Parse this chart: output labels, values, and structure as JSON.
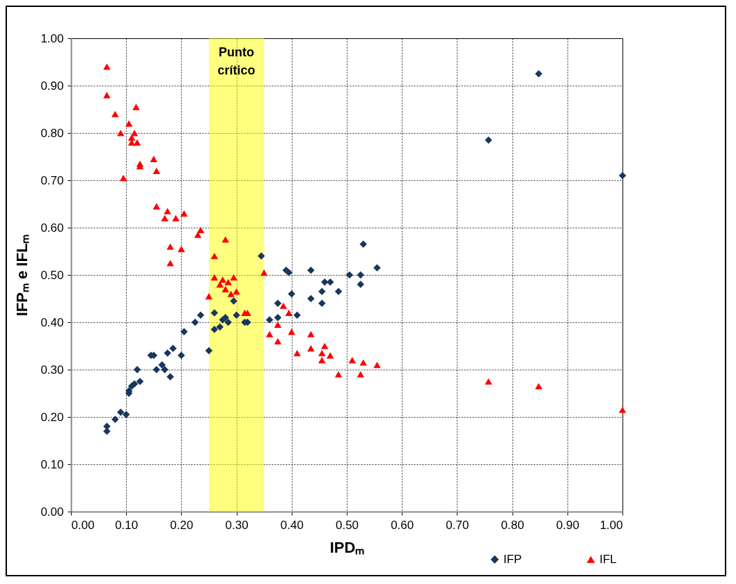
{
  "chart_data": {
    "type": "scatter",
    "xlabel": "IPDₘ",
    "ylabel": "IFPₘ e IFLₘ",
    "xlim": [
      0,
      1
    ],
    "ylim": [
      0,
      1
    ],
    "xticks": [
      {
        "value": 0,
        "label": "0.00"
      },
      {
        "value": 0.1,
        "label": "0.10"
      },
      {
        "value": 0.2,
        "label": "0.20"
      },
      {
        "value": 0.3,
        "label": "0.30"
      },
      {
        "value": 0.4,
        "label": "0.40"
      },
      {
        "value": 0.5,
        "label": "0.50"
      },
      {
        "value": 0.6,
        "label": "0.60"
      },
      {
        "value": 0.7,
        "label": "0.70"
      },
      {
        "value": 0.8,
        "label": "0.80"
      },
      {
        "value": 0.9,
        "label": "0.90"
      },
      {
        "value": 1,
        "label": "1.00"
      }
    ],
    "yticks": [
      {
        "value": 0,
        "label": "0.00"
      },
      {
        "value": 0.1,
        "label": "0.10"
      },
      {
        "value": 0.2,
        "label": "0.20"
      },
      {
        "value": 0.3,
        "label": "0.30"
      },
      {
        "value": 0.4,
        "label": "0.40"
      },
      {
        "value": 0.5,
        "label": "0.50"
      },
      {
        "value": 0.6,
        "label": "0.60"
      },
      {
        "value": 0.7,
        "label": "0.70"
      },
      {
        "value": 0.8,
        "label": "0.80"
      },
      {
        "value": 0.9,
        "label": "0.90"
      },
      {
        "value": 1,
        "label": "1.00"
      }
    ],
    "grid": true,
    "legend": "bottom right",
    "bands": [
      {
        "axis": "x",
        "from": 0.25,
        "to": 0.35,
        "label": "Punto crítico",
        "color": "#ffff00"
      }
    ],
    "series": [
      {
        "name": "IFP",
        "color": "#17375e",
        "marker": "diamond",
        "x": [
          0.065,
          0.065,
          0.08,
          0.09,
          0.1,
          0.105,
          0.105,
          0.11,
          0.115,
          0.12,
          0.125,
          0.145,
          0.15,
          0.155,
          0.165,
          0.175,
          0.17,
          0.18,
          0.185,
          0.2,
          0.205,
          0.225,
          0.235,
          0.25,
          0.26,
          0.26,
          0.27,
          0.275,
          0.28,
          0.285,
          0.295,
          0.3,
          0.315,
          0.32,
          0.345,
          0.36,
          0.375,
          0.375,
          0.39,
          0.395,
          0.4,
          0.41,
          0.435,
          0.435,
          0.455,
          0.455,
          0.46,
          0.47,
          0.485,
          0.505,
          0.525,
          0.525,
          0.53,
          0.555,
          0.757,
          0.848,
          1.0
        ],
        "values": [
          0.18,
          0.17,
          0.195,
          0.21,
          0.205,
          0.255,
          0.25,
          0.265,
          0.27,
          0.3,
          0.275,
          0.33,
          0.33,
          0.3,
          0.31,
          0.335,
          0.3,
          0.285,
          0.345,
          0.33,
          0.38,
          0.4,
          0.415,
          0.34,
          0.42,
          0.385,
          0.39,
          0.405,
          0.41,
          0.4,
          0.445,
          0.415,
          0.4,
          0.4,
          0.54,
          0.405,
          0.44,
          0.41,
          0.51,
          0.505,
          0.46,
          0.415,
          0.51,
          0.45,
          0.465,
          0.44,
          0.485,
          0.485,
          0.465,
          0.5,
          0.5,
          0.48,
          0.565,
          0.515,
          0.785,
          0.925,
          0.71
        ]
      },
      {
        "name": "IFL",
        "color": "#ff0000",
        "marker": "triangle",
        "x": [
          0.065,
          0.065,
          0.08,
          0.09,
          0.095,
          0.105,
          0.11,
          0.11,
          0.115,
          0.118,
          0.12,
          0.125,
          0.125,
          0.15,
          0.155,
          0.155,
          0.17,
          0.175,
          0.18,
          0.18,
          0.19,
          0.2,
          0.205,
          0.23,
          0.235,
          0.25,
          0.26,
          0.26,
          0.27,
          0.275,
          0.28,
          0.28,
          0.285,
          0.29,
          0.295,
          0.3,
          0.315,
          0.32,
          0.35,
          0.36,
          0.375,
          0.375,
          0.385,
          0.395,
          0.4,
          0.41,
          0.435,
          0.435,
          0.455,
          0.455,
          0.46,
          0.47,
          0.485,
          0.51,
          0.525,
          0.53,
          0.555,
          0.757,
          0.848,
          1.0
        ],
        "values": [
          0.94,
          0.88,
          0.84,
          0.8,
          0.705,
          0.82,
          0.79,
          0.78,
          0.8,
          0.855,
          0.78,
          0.73,
          0.735,
          0.745,
          0.72,
          0.645,
          0.62,
          0.635,
          0.56,
          0.525,
          0.62,
          0.555,
          0.63,
          0.585,
          0.595,
          0.455,
          0.54,
          0.495,
          0.48,
          0.49,
          0.575,
          0.47,
          0.485,
          0.46,
          0.495,
          0.465,
          0.42,
          0.42,
          0.505,
          0.375,
          0.395,
          0.36,
          0.435,
          0.42,
          0.38,
          0.335,
          0.375,
          0.345,
          0.335,
          0.32,
          0.35,
          0.33,
          0.29,
          0.32,
          0.29,
          0.315,
          0.31,
          0.275,
          0.265,
          0.215
        ]
      }
    ]
  }
}
